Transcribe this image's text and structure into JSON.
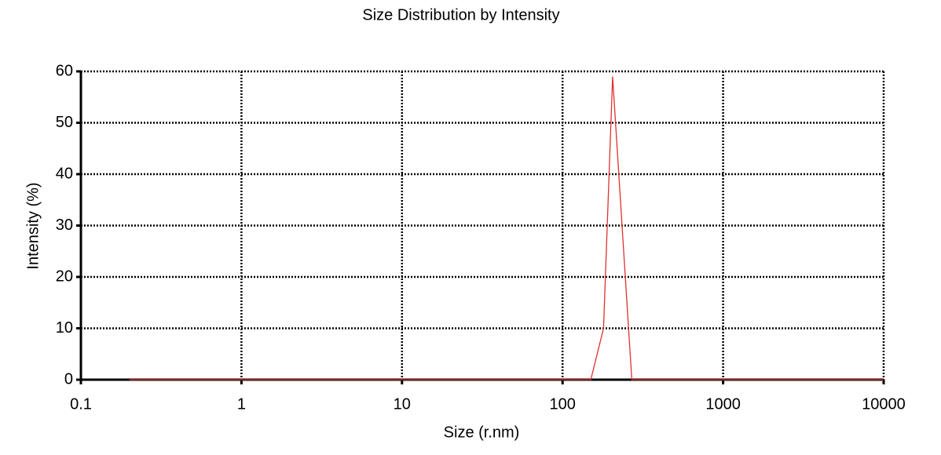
{
  "chart_data": {
    "type": "line",
    "title": "Size Distribution by Intensity",
    "x_label": "Size (r.nm)",
    "y_label": "Intensity (%)",
    "x": [
      0.2,
      150,
      180,
      205,
      270,
      10000
    ],
    "values": [
      0,
      0,
      10,
      59,
      0,
      0
    ],
    "color": "#e03030",
    "xscale": "log",
    "xlim": [
      0.1,
      10000
    ],
    "xticks": [
      0.1,
      1,
      10,
      100,
      1000,
      10000
    ],
    "ylim": [
      0,
      60
    ],
    "yticks": [
      0,
      10,
      20,
      30,
      40,
      50,
      60
    ],
    "grid": true
  }
}
